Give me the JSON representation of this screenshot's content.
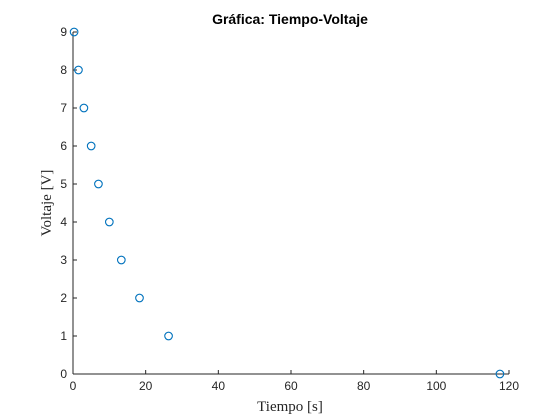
{
  "chart_data": {
    "type": "scatter",
    "title": "Gráfica: Tiempo-Voltaje",
    "xlabel": "Tiempo [s]",
    "ylabel": "Voltaje [V]",
    "xlim": [
      0,
      120
    ],
    "ylim": [
      0,
      9
    ],
    "xticks": [
      0,
      20,
      40,
      60,
      80,
      100,
      120
    ],
    "yticks": [
      0,
      1,
      2,
      3,
      4,
      5,
      6,
      7,
      8,
      9
    ],
    "grid": false,
    "marker_color": "#0072bd",
    "series": [
      {
        "marker": "circle",
        "x": [
          0.3,
          1.5,
          3.0,
          5.0,
          7.0,
          10.0,
          13.3,
          18.3,
          26.3,
          117.5
        ],
        "y": [
          9,
          8,
          7,
          6,
          5,
          4,
          3,
          2,
          1,
          0
        ]
      }
    ]
  }
}
